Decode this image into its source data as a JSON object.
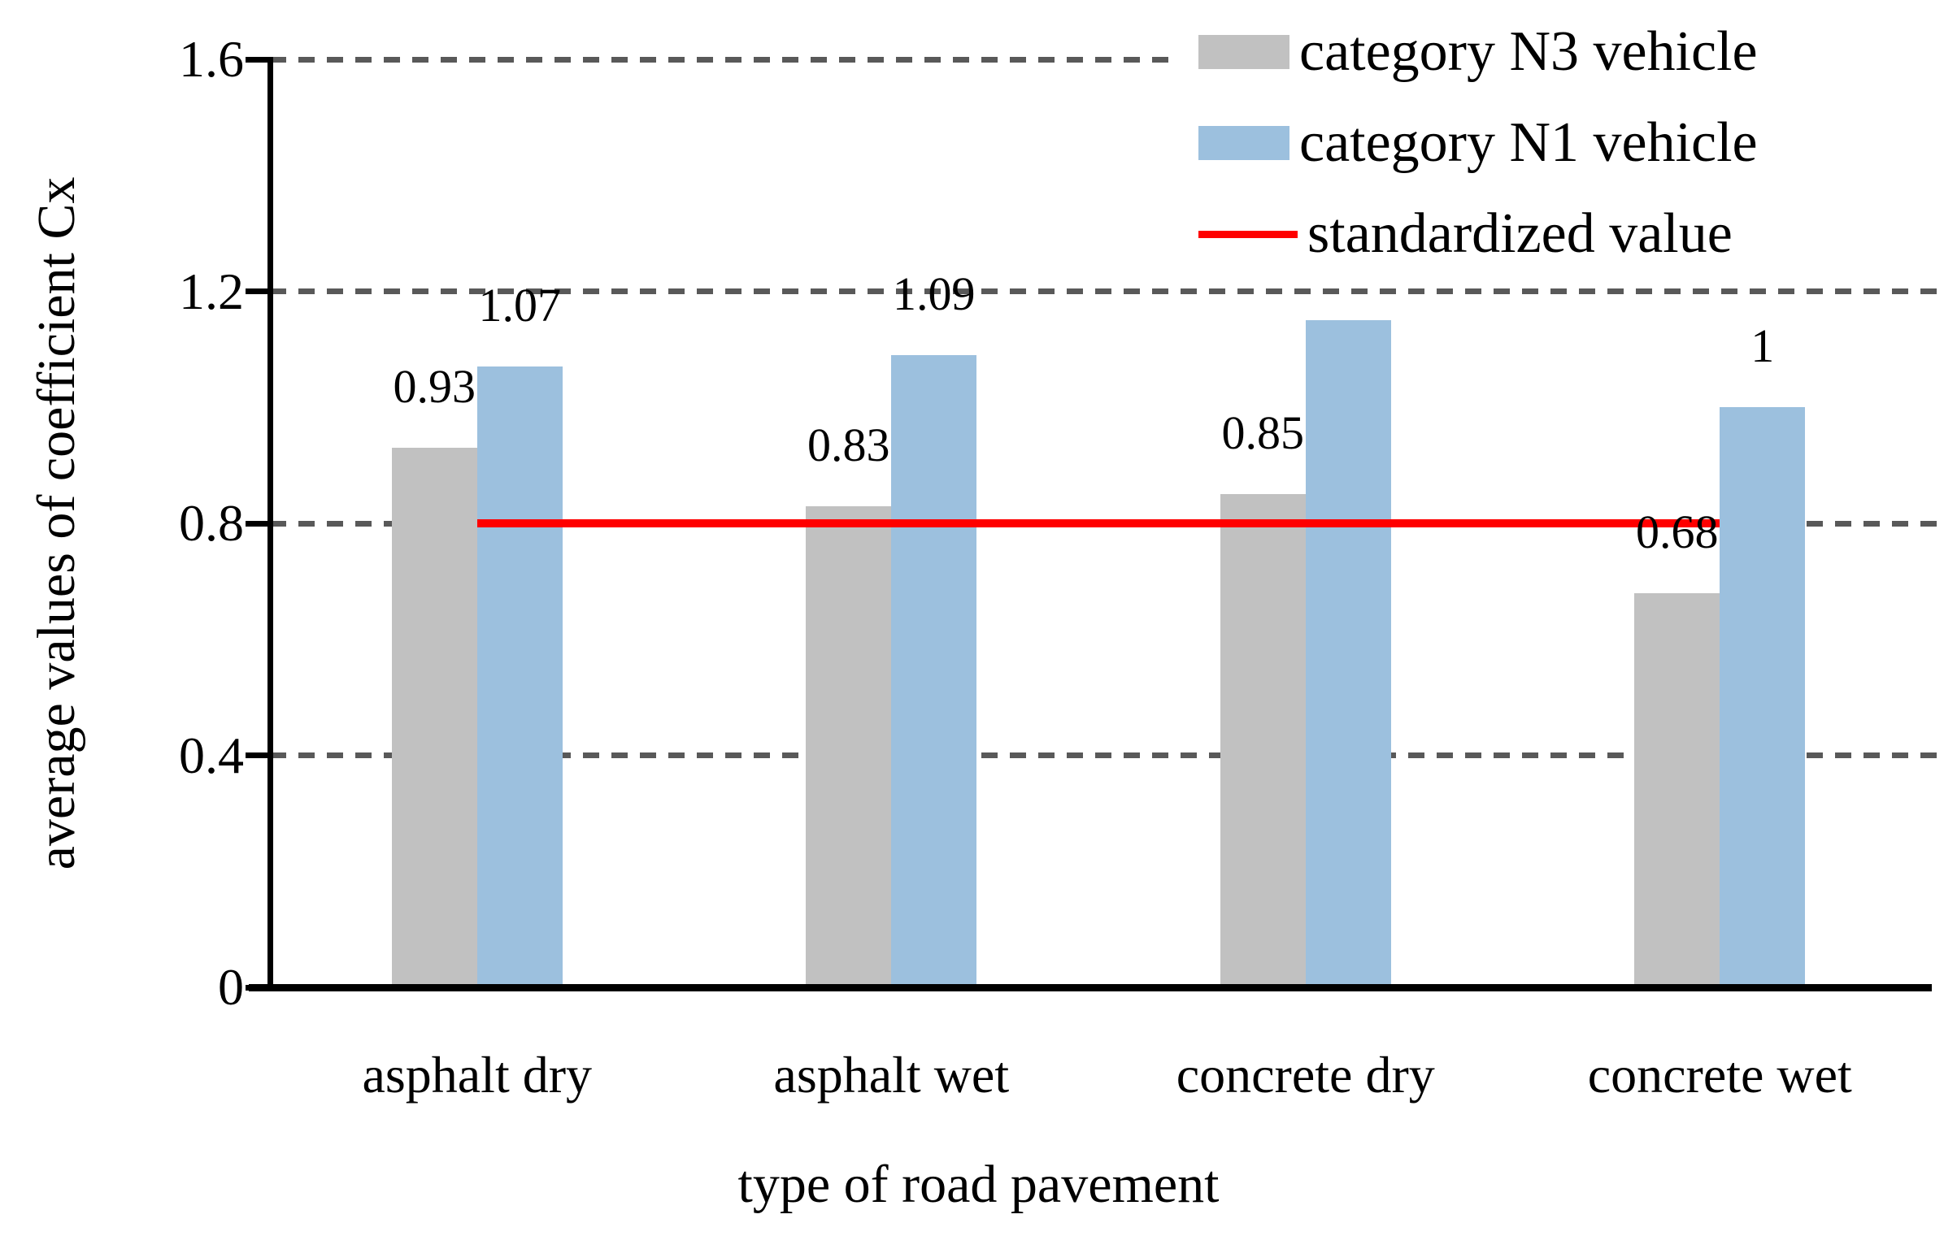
{
  "chart_data": {
    "type": "bar",
    "title": "",
    "categories": [
      "asphalt dry",
      "asphalt wet",
      "concrete dry",
      "concrete wet"
    ],
    "series": [
      {
        "name": "category N3 vehicle",
        "color": "#c1c1c1",
        "values": [
          0.93,
          0.83,
          0.85,
          0.68
        ],
        "data_labels": [
          "0.93",
          "0.83",
          "0.85",
          "0.68"
        ]
      },
      {
        "name": "category N1 vehicle",
        "color": "#9cc0de",
        "values": [
          1.07,
          1.09,
          1.15,
          1.0
        ],
        "data_labels": [
          "1.07",
          "1.09",
          "",
          "1"
        ]
      }
    ],
    "reference_line": {
      "label": "standardized value",
      "value": 0.8,
      "color": "#ff0000",
      "span_groups": [
        0.5,
        3.5
      ]
    },
    "xlabel": "type of road pavement",
    "ylabel": "average values of coefficient Cx",
    "ylim": [
      0,
      1.6
    ],
    "yticks": [
      0,
      0.4,
      0.8,
      1.2,
      1.6
    ],
    "ytick_labels": [
      "0",
      "0.4",
      "0.8",
      "1.2",
      "1.6"
    ],
    "grid": "horizontal-dashed",
    "gridline_color": "#595959",
    "axis_color": "#000000",
    "legend_position": "top-right"
  }
}
